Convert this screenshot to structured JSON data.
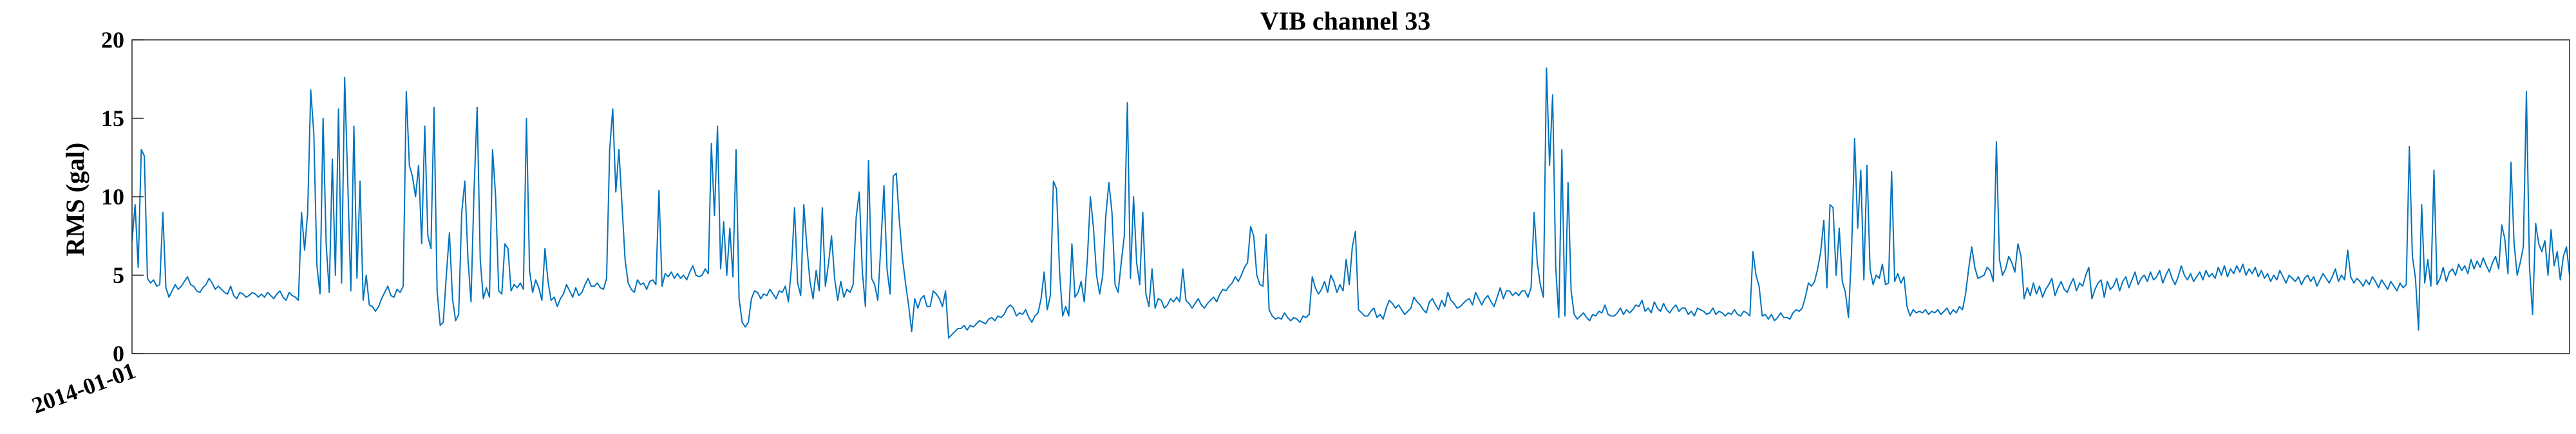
{
  "chart_data": {
    "type": "line",
    "title": "VIB channel 33",
    "xlabel": "",
    "ylabel": "RMS (gal)",
    "ylim": [
      0,
      20
    ],
    "yticks": [
      0,
      5,
      10,
      15,
      20
    ],
    "xticks": [
      "2014-01-01"
    ],
    "grid": false,
    "legend": "none",
    "color": "#0072BD",
    "series": [
      {
        "values": [
          7.2,
          9.5,
          5.5,
          13.0,
          12.6,
          4.8,
          4.5,
          4.7,
          4.3,
          4.4,
          9.0,
          4.2,
          3.6,
          4.0,
          4.4,
          4.1,
          4.3,
          4.6,
          4.9,
          4.4,
          4.3,
          4.0,
          3.9,
          4.2,
          4.4,
          4.8,
          4.5,
          4.1,
          4.3,
          4.1,
          3.9,
          3.8,
          4.3,
          3.7,
          3.5,
          3.9,
          3.8,
          3.6,
          3.7,
          3.9,
          3.8,
          3.6,
          3.8,
          3.6,
          3.9,
          3.7,
          3.5,
          3.8,
          4.0,
          3.6,
          3.4,
          3.9,
          3.7,
          3.6,
          3.4,
          9.0,
          6.6,
          9.0,
          16.8,
          14.0,
          5.6,
          3.8,
          15.0,
          7.0,
          3.9,
          12.4,
          5.0,
          15.6,
          4.5,
          17.6,
          11.0,
          4.0,
          14.5,
          4.8,
          11.0,
          3.4,
          5.0,
          3.1,
          3.0,
          2.7,
          3.0,
          3.5,
          3.9,
          4.3,
          3.7,
          3.6,
          4.1,
          3.9,
          4.3,
          16.7,
          12.0,
          11.3,
          10.0,
          12.0,
          7.0,
          14.5,
          7.5,
          6.7,
          15.7,
          4.0,
          1.8,
          2.0,
          5.0,
          7.7,
          3.5,
          2.1,
          2.5,
          9.0,
          11.0,
          6.1,
          3.3,
          10.5,
          15.7,
          6.0,
          3.5,
          4.2,
          3.6,
          13.0,
          10.0,
          4.0,
          3.8,
          7.0,
          6.7,
          4.0,
          4.4,
          4.2,
          4.5,
          4.1,
          15.0,
          5.3,
          3.9,
          4.7,
          4.2,
          3.4,
          6.7,
          4.6,
          3.4,
          3.6,
          3.0,
          3.5,
          3.8,
          4.4,
          4.0,
          3.6,
          4.2,
          3.7,
          3.9,
          4.4,
          4.8,
          4.3,
          4.3,
          4.5,
          4.2,
          4.1,
          4.8,
          13.0,
          15.6,
          10.3,
          13.0,
          9.5,
          6.0,
          4.5,
          4.1,
          3.9,
          4.7,
          4.4,
          4.5,
          4.1,
          4.6,
          4.7,
          4.4,
          10.4,
          4.3,
          5.1,
          4.9,
          5.2,
          4.8,
          5.1,
          4.8,
          5.0,
          4.7,
          5.2,
          5.6,
          5.0,
          4.9,
          5.0,
          5.4,
          5.1,
          13.4,
          8.8,
          14.5,
          5.4,
          8.4,
          5.0,
          8.0,
          4.9,
          13.0,
          3.5,
          2.0,
          1.7,
          2.0,
          3.5,
          4.0,
          3.9,
          3.5,
          3.8,
          3.7,
          4.1,
          3.8,
          3.5,
          4.0,
          3.9,
          4.3,
          3.3,
          5.5,
          9.3,
          4.5,
          3.7,
          9.5,
          6.8,
          4.6,
          3.5,
          5.3,
          4.0,
          9.3,
          4.3,
          5.7,
          7.5,
          4.8,
          3.4,
          4.6,
          3.6,
          4.1,
          3.9,
          4.4,
          8.7,
          10.3,
          5.2,
          3.0,
          12.3,
          4.8,
          4.4,
          3.4,
          6.9,
          10.7,
          5.4,
          3.8,
          11.3,
          11.5,
          8.5,
          6.1,
          4.5,
          3.1,
          1.4,
          3.5,
          2.9,
          3.5,
          3.7,
          3.0,
          3.0,
          4.0,
          3.8,
          3.5,
          3.0,
          4.0,
          1.0,
          1.2,
          1.4,
          1.6,
          1.6,
          1.8,
          1.5,
          1.8,
          1.7,
          1.9,
          2.1,
          2.0,
          1.9,
          2.2,
          2.3,
          2.1,
          2.4,
          2.3,
          2.5,
          2.9,
          3.1,
          2.9,
          2.4,
          2.6,
          2.5,
          2.8,
          2.3,
          2.0,
          2.4,
          2.6,
          3.5,
          5.2,
          2.8,
          3.7,
          11.0,
          10.5,
          5.2,
          2.4,
          3.0,
          2.4,
          7.0,
          3.6,
          3.9,
          4.6,
          3.3,
          6.0,
          10.0,
          8.0,
          5.0,
          3.8,
          5.0,
          8.8,
          10.9,
          9.0,
          4.4,
          3.9,
          5.8,
          7.5,
          16.0,
          4.8,
          10.0,
          5.8,
          4.4,
          9.0,
          3.8,
          3.0,
          5.4,
          2.9,
          3.5,
          3.4,
          2.9,
          3.1,
          3.5,
          3.3,
          3.6,
          3.3,
          5.4,
          3.4,
          3.2,
          2.9,
          3.2,
          3.5,
          3.1,
          2.9,
          3.2,
          3.4,
          3.6,
          3.3,
          3.8,
          4.1,
          4.0,
          4.3,
          4.5,
          4.9,
          4.6,
          5.0,
          5.5,
          5.8,
          8.1,
          7.5,
          5.0,
          4.4,
          4.3,
          7.6,
          2.8,
          2.4,
          2.2,
          2.3,
          2.2,
          2.6,
          2.3,
          2.1,
          2.3,
          2.2,
          2.0,
          2.4,
          2.3,
          2.5,
          4.9,
          4.2,
          3.8,
          4.1,
          4.6,
          3.9,
          5.0,
          4.6,
          3.9,
          4.4,
          4.0,
          6.0,
          4.4,
          6.8,
          7.8,
          2.8,
          2.6,
          2.4,
          2.4,
          2.7,
          2.9,
          2.3,
          2.5,
          2.2,
          2.9,
          3.4,
          3.2,
          2.9,
          3.1,
          2.8,
          2.5,
          2.7,
          2.9,
          3.6,
          3.3,
          3.1,
          2.8,
          2.6,
          3.3,
          3.5,
          3.1,
          2.8,
          3.4,
          3.0,
          3.9,
          3.4,
          3.2,
          2.9,
          3.0,
          3.2,
          3.4,
          3.5,
          3.1,
          3.9,
          3.5,
          3.1,
          3.5,
          3.7,
          3.3,
          3.0,
          3.6,
          4.2,
          3.5,
          4.0,
          4.0,
          3.7,
          3.9,
          3.7,
          4.0,
          4.0,
          3.6,
          4.2,
          9.0,
          5.8,
          4.4,
          3.6,
          18.2,
          12.0,
          16.5,
          5.5,
          2.3,
          13.0,
          2.4,
          10.9,
          4.0,
          2.5,
          2.2,
          2.4,
          2.6,
          2.3,
          2.1,
          2.5,
          2.4,
          2.7,
          2.6,
          3.1,
          2.5,
          2.4,
          2.4,
          2.6,
          2.9,
          2.5,
          2.8,
          2.6,
          2.8,
          3.1,
          3.0,
          3.4,
          2.7,
          2.9,
          2.6,
          3.3,
          2.9,
          2.7,
          3.2,
          2.8,
          2.6,
          2.9,
          3.1,
          2.7,
          2.9,
          2.9,
          2.5,
          2.7,
          2.4,
          2.9,
          2.8,
          2.7,
          2.5,
          2.6,
          2.9,
          2.5,
          2.7,
          2.6,
          2.4,
          2.6,
          2.5,
          2.8,
          2.5,
          2.4,
          2.7,
          2.6,
          2.4,
          6.5,
          5.0,
          4.3,
          2.4,
          2.5,
          2.2,
          2.5,
          2.1,
          2.3,
          2.6,
          2.3,
          2.3,
          2.2,
          2.6,
          2.8,
          2.7,
          2.9,
          3.6,
          4.5,
          4.3,
          4.6,
          5.4,
          6.5,
          8.5,
          4.2,
          9.5,
          9.3,
          5.0,
          8.0,
          4.6,
          3.9,
          2.3,
          6.5,
          13.7,
          8.0,
          11.7,
          4.7,
          12.0,
          5.4,
          4.4,
          5.0,
          4.8,
          5.7,
          4.4,
          4.5,
          11.6,
          4.6,
          5.1,
          4.5,
          4.9,
          3.0,
          2.4,
          2.8,
          2.6,
          2.7,
          2.6,
          2.8,
          2.5,
          2.7,
          2.6,
          2.8,
          2.5,
          2.7,
          2.9,
          2.5,
          2.8,
          2.6,
          3.0,
          2.8,
          3.8,
          5.4,
          6.8,
          5.5,
          4.8,
          4.9,
          5.0,
          5.5,
          5.3,
          4.6,
          13.5,
          6.0,
          5.0,
          5.4,
          6.2,
          5.8,
          5.2,
          7.0,
          6.2,
          3.5,
          4.2,
          3.7,
          4.5,
          3.8,
          4.3,
          3.6,
          4.1,
          4.4,
          4.8,
          3.7,
          4.2,
          4.6,
          4.1,
          3.9,
          4.4,
          4.8,
          4.0,
          4.5,
          4.3,
          5.0,
          5.5,
          3.5,
          4.1,
          4.5,
          4.7,
          3.6,
          4.6,
          4.1,
          4.3,
          4.8,
          4.0,
          4.6,
          4.9,
          4.2,
          4.7,
          5.2,
          4.4,
          4.8,
          5.0,
          4.6,
          5.2,
          4.7,
          4.9,
          5.3,
          4.5,
          5.0,
          5.4,
          4.8,
          4.4,
          4.9,
          5.6,
          5.0,
          4.7,
          5.1,
          4.6,
          4.9,
          5.2,
          4.7,
          5.3,
          4.9,
          5.1,
          4.8,
          5.5,
          5.0,
          5.6,
          4.9,
          5.4,
          5.1,
          5.6,
          5.2,
          5.7,
          5.0,
          5.4,
          5.1,
          5.5,
          4.9,
          5.3,
          4.8,
          5.1,
          4.6,
          5.0,
          4.7,
          5.3,
          4.9,
          4.5,
          5.0,
          4.8,
          4.6,
          4.9,
          4.4,
          4.8,
          5.0,
          4.6,
          4.9,
          4.3,
          4.7,
          5.1,
          4.8,
          4.5,
          4.9,
          5.4,
          4.6,
          5.0,
          4.7,
          6.6,
          4.9,
          4.5,
          4.8,
          4.6,
          4.3,
          4.7,
          4.4,
          4.9,
          4.6,
          4.2,
          4.7,
          4.4,
          4.1,
          4.6,
          4.3,
          4.0,
          4.5,
          4.2,
          4.4,
          13.2,
          6.2,
          4.8,
          1.5,
          9.5,
          4.5,
          6.0,
          4.3,
          11.7,
          4.4,
          4.8,
          5.5,
          4.6,
          5.2,
          5.4,
          5.0,
          5.7,
          5.3,
          5.6,
          5.1,
          6.0,
          5.4,
          5.9,
          5.5,
          6.1,
          5.6,
          5.2,
          5.8,
          6.2,
          5.4,
          8.2,
          7.3,
          5.1,
          12.2,
          7.0,
          5.0,
          5.8,
          6.8,
          16.7,
          5.5,
          2.5,
          8.3,
          7.0,
          6.5,
          7.2,
          5.0,
          7.9,
          5.6,
          6.5,
          4.7,
          6.2,
          6.8,
          5.0
        ]
      }
    ]
  }
}
